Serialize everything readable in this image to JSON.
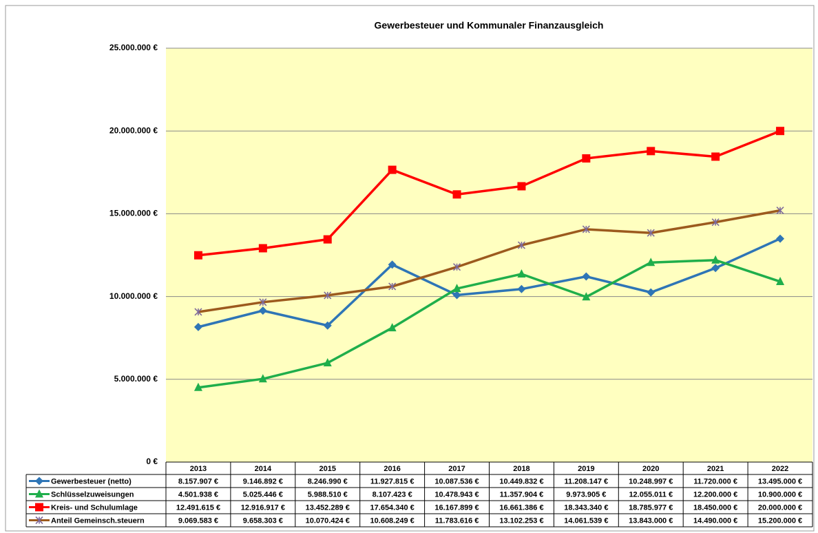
{
  "chart_data": {
    "type": "line",
    "title": "Gewerbesteuer und Kommunaler Finanzausgleich",
    "categories": [
      "2013",
      "2014",
      "2015",
      "2016",
      "2017",
      "2018",
      "2019",
      "2020",
      "2021",
      "2022"
    ],
    "ylim": [
      0,
      25000000
    ],
    "yticks": [
      {
        "value": 0,
        "label": "0 €"
      },
      {
        "value": 5000000,
        "label": "5.000.000 €"
      },
      {
        "value": 10000000,
        "label": "10.000.000 €"
      },
      {
        "value": 15000000,
        "label": "15.000.000 €"
      },
      {
        "value": 20000000,
        "label": "20.000.000 €"
      },
      {
        "value": 25000000,
        "label": "25.000.000 €"
      }
    ],
    "grid": true,
    "series": [
      {
        "name": "Gewerbesteuer (netto)",
        "color": "#2e75b6",
        "marker": "diamond",
        "values": [
          8157907,
          9146892,
          8246990,
          11927815,
          10087536,
          10449832,
          11208147,
          10248997,
          11720000,
          13495000
        ],
        "value_labels": [
          "8.157.907 €",
          "9.146.892 €",
          "8.246.990 €",
          "11.927.815 €",
          "10.087.536 €",
          "10.449.832 €",
          "11.208.147 €",
          "10.248.997 €",
          "11.720.000 €",
          "13.495.000 €"
        ]
      },
      {
        "name": "Schlüsselzuweisungen",
        "color": "#1fae4b",
        "marker": "triangle",
        "values": [
          4501938,
          5025446,
          5988510,
          8107423,
          10478943,
          11357904,
          9973905,
          12055011,
          12200000,
          10900000
        ],
        "value_labels": [
          "4.501.938 €",
          "5.025.446 €",
          "5.988.510 €",
          "8.107.423 €",
          "10.478.943 €",
          "11.357.904 €",
          "9.973.905 €",
          "12.055.011 €",
          "12.200.000 €",
          "10.900.000 €"
        ]
      },
      {
        "name": "Kreis- und Schulumlage",
        "color": "#ff0000",
        "marker": "square",
        "values": [
          12491615,
          12916917,
          13452289,
          17654340,
          16167899,
          16661386,
          18343340,
          18785977,
          18450000,
          20000000
        ],
        "value_labels": [
          "12.491.615 €",
          "12.916.917 €",
          "13.452.289 €",
          "17.654.340 €",
          "16.167.899 €",
          "16.661.386 €",
          "18.343.340 €",
          "18.785.977 €",
          "18.450.000 €",
          "20.000.000 €"
        ]
      },
      {
        "name": "Anteil Gemeinsch.steuern",
        "color": "#9c5a1e",
        "marker": "x",
        "values": [
          9069583,
          9658303,
          10070424,
          10608249,
          11783616,
          13102253,
          14061539,
          13843000,
          14490000,
          15200000
        ],
        "value_labels": [
          "9.069.583 €",
          "9.658.303 €",
          "10.070.424 €",
          "10.608.249 €",
          "11.783.616 €",
          "13.102.253 €",
          "14.061.539 €",
          "13.843.000 €",
          "14.490.000 €",
          "15.200.000 €"
        ]
      }
    ]
  }
}
